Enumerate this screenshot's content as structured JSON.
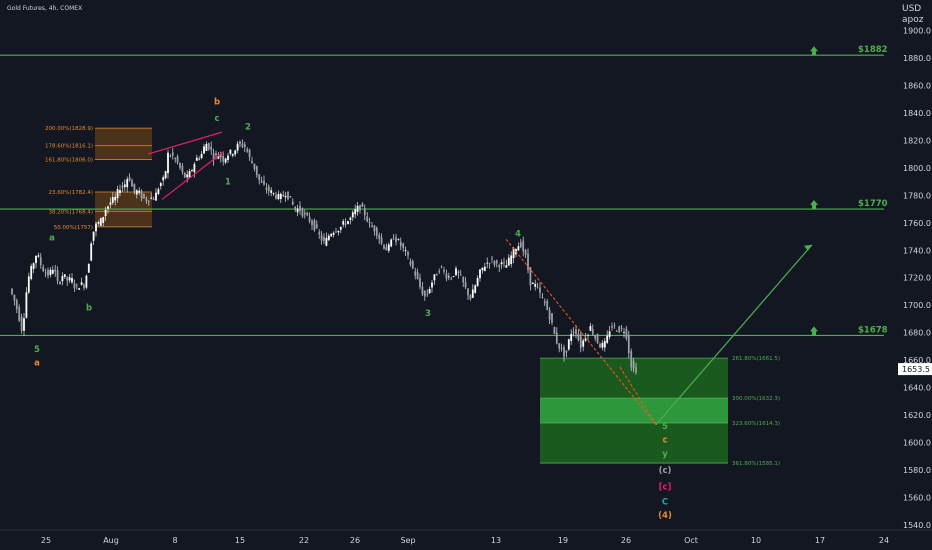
{
  "header": {
    "symbol_line": "Gold Futures, 4h, COMEX",
    "currency": "USD",
    "account": "apoz"
  },
  "colors": {
    "background": "#131722",
    "axis_text": "#d1d4dc",
    "candle_up": "#ffffff",
    "candle_down": "#ffffff",
    "level_line": "#4caf50",
    "wave_green": "#4caf50",
    "wave_orange": "#e68a2e",
    "wave_pink": "#e91e63",
    "wave_grey": "#9e9e9e",
    "wave_teal": "#26a69a",
    "fib_orange_fill": "#5a3a1a",
    "fib_green_dark": "#1b5e20",
    "fib_green_light": "#2e9e3e",
    "current_price_bg": "#ffffff"
  },
  "chart_data": {
    "type": "candlestick",
    "ylim": [
      1540,
      1920
    ],
    "y_ticks": [
      1540,
      1560,
      1580,
      1600,
      1620,
      1640,
      1660,
      1680,
      1700,
      1720,
      1740,
      1760,
      1780,
      1800,
      1820,
      1840,
      1860,
      1880,
      1900
    ],
    "y_tick_labels": [
      "1540.0",
      "1560.0",
      "1580.0",
      "1600.0",
      "1620.0",
      "1640.0",
      "1660.0",
      "1680.0",
      "1700.0",
      "1720.0",
      "1740.0",
      "1760.0",
      "1780.0",
      "1800.0",
      "1820.0",
      "1840.0",
      "1860.0",
      "1880.0",
      "1900.0"
    ],
    "x_ticks": [
      "25",
      "Aug",
      "8",
      "15",
      "22",
      "26",
      "Sep",
      "13",
      "19",
      "26",
      "Oct",
      "10",
      "17",
      "24"
    ],
    "current_price": "1653.5",
    "price_path": [
      {
        "t": 0,
        "p": 1712
      },
      {
        "t": 4,
        "p": 1705
      },
      {
        "t": 8,
        "p": 1696
      },
      {
        "t": 12,
        "p": 1683
      },
      {
        "t": 14,
        "p": 1690
      },
      {
        "t": 18,
        "p": 1718
      },
      {
        "t": 22,
        "p": 1727
      },
      {
        "t": 27,
        "p": 1738
      },
      {
        "t": 31,
        "p": 1730
      },
      {
        "t": 35,
        "p": 1724
      },
      {
        "t": 39,
        "p": 1722
      },
      {
        "t": 44,
        "p": 1728
      },
      {
        "t": 48,
        "p": 1716
      },
      {
        "t": 53,
        "p": 1722
      },
      {
        "t": 58,
        "p": 1718
      },
      {
        "t": 62,
        "p": 1719
      },
      {
        "t": 66,
        "p": 1712
      },
      {
        "t": 70,
        "p": 1715
      },
      {
        "t": 75,
        "p": 1715
      },
      {
        "t": 80,
        "p": 1735
      },
      {
        "t": 82,
        "p": 1750
      },
      {
        "t": 86,
        "p": 1758
      },
      {
        "t": 92,
        "p": 1762
      },
      {
        "t": 96,
        "p": 1770
      },
      {
        "t": 101,
        "p": 1775
      },
      {
        "t": 106,
        "p": 1778
      },
      {
        "t": 110,
        "p": 1786
      },
      {
        "t": 114,
        "p": 1786
      },
      {
        "t": 119,
        "p": 1795
      },
      {
        "t": 124,
        "p": 1782
      },
      {
        "t": 128,
        "p": 1783
      },
      {
        "t": 133,
        "p": 1778
      },
      {
        "t": 137,
        "p": 1777
      },
      {
        "t": 140,
        "p": 1778
      },
      {
        "t": 145,
        "p": 1778
      },
      {
        "t": 150,
        "p": 1788
      },
      {
        "t": 155,
        "p": 1792
      },
      {
        "t": 158,
        "p": 1810
      },
      {
        "t": 164,
        "p": 1808
      },
      {
        "t": 169,
        "p": 1802
      },
      {
        "t": 174,
        "p": 1794
      },
      {
        "t": 178,
        "p": 1793
      },
      {
        "t": 183,
        "p": 1800
      },
      {
        "t": 186,
        "p": 1806
      },
      {
        "t": 192,
        "p": 1810
      },
      {
        "t": 196,
        "p": 1818
      },
      {
        "t": 200,
        "p": 1815
      },
      {
        "t": 204,
        "p": 1808
      },
      {
        "t": 209,
        "p": 1810
      },
      {
        "t": 214,
        "p": 1806
      },
      {
        "t": 218,
        "p": 1810
      },
      {
        "t": 224,
        "p": 1812
      },
      {
        "t": 230,
        "p": 1818
      },
      {
        "t": 236,
        "p": 1815
      },
      {
        "t": 240,
        "p": 1807
      },
      {
        "t": 245,
        "p": 1800
      },
      {
        "t": 250,
        "p": 1790
      },
      {
        "t": 256,
        "p": 1785
      },
      {
        "t": 262,
        "p": 1782
      },
      {
        "t": 266,
        "p": 1780
      },
      {
        "t": 270,
        "p": 1778
      },
      {
        "t": 276,
        "p": 1782
      },
      {
        "t": 280,
        "p": 1778
      },
      {
        "t": 285,
        "p": 1770
      },
      {
        "t": 290,
        "p": 1770
      },
      {
        "t": 295,
        "p": 1765
      },
      {
        "t": 300,
        "p": 1762
      },
      {
        "t": 305,
        "p": 1757
      },
      {
        "t": 310,
        "p": 1750
      },
      {
        "t": 315,
        "p": 1745
      },
      {
        "t": 320,
        "p": 1752
      },
      {
        "t": 325,
        "p": 1755
      },
      {
        "t": 330,
        "p": 1756
      },
      {
        "t": 335,
        "p": 1760
      },
      {
        "t": 340,
        "p": 1762
      },
      {
        "t": 345,
        "p": 1768
      },
      {
        "t": 350,
        "p": 1772
      },
      {
        "t": 355,
        "p": 1767
      },
      {
        "t": 360,
        "p": 1758
      },
      {
        "t": 366,
        "p": 1755
      },
      {
        "t": 372,
        "p": 1745
      },
      {
        "t": 378,
        "p": 1740
      },
      {
        "t": 384,
        "p": 1750
      },
      {
        "t": 390,
        "p": 1745
      },
      {
        "t": 396,
        "p": 1738
      },
      {
        "t": 401,
        "p": 1730
      },
      {
        "t": 406,
        "p": 1722
      },
      {
        "t": 411,
        "p": 1712
      },
      {
        "t": 416,
        "p": 1705
      },
      {
        "t": 421,
        "p": 1715
      },
      {
        "t": 426,
        "p": 1722
      },
      {
        "t": 431,
        "p": 1728
      },
      {
        "t": 436,
        "p": 1722
      },
      {
        "t": 441,
        "p": 1720
      },
      {
        "t": 446,
        "p": 1725
      },
      {
        "t": 451,
        "p": 1720
      },
      {
        "t": 456,
        "p": 1712
      },
      {
        "t": 461,
        "p": 1705
      },
      {
        "t": 466,
        "p": 1715
      },
      {
        "t": 471,
        "p": 1725
      },
      {
        "t": 476,
        "p": 1730
      },
      {
        "t": 481,
        "p": 1733
      },
      {
        "t": 486,
        "p": 1730
      },
      {
        "t": 491,
        "p": 1730
      },
      {
        "t": 496,
        "p": 1728
      },
      {
        "t": 501,
        "p": 1735
      },
      {
        "t": 506,
        "p": 1742
      },
      {
        "t": 511,
        "p": 1745
      },
      {
        "t": 516,
        "p": 1735
      },
      {
        "t": 521,
        "p": 1716
      },
      {
        "t": 526,
        "p": 1714
      },
      {
        "t": 531,
        "p": 1707
      },
      {
        "t": 536,
        "p": 1700
      },
      {
        "t": 541,
        "p": 1690
      },
      {
        "t": 546,
        "p": 1675
      },
      {
        "t": 551,
        "p": 1668
      },
      {
        "t": 556,
        "p": 1663
      },
      {
        "t": 561,
        "p": 1680
      },
      {
        "t": 566,
        "p": 1682
      },
      {
        "t": 571,
        "p": 1670
      },
      {
        "t": 576,
        "p": 1678
      },
      {
        "t": 581,
        "p": 1684
      },
      {
        "t": 586,
        "p": 1676
      },
      {
        "t": 591,
        "p": 1670
      },
      {
        "t": 596,
        "p": 1672
      },
      {
        "t": 601,
        "p": 1685
      },
      {
        "t": 606,
        "p": 1683
      },
      {
        "t": 611,
        "p": 1682
      },
      {
        "t": 616,
        "p": 1682
      },
      {
        "t": 621,
        "p": 1658
      },
      {
        "t": 624,
        "p": 1653.5
      }
    ],
    "levels": [
      {
        "price": 1882,
        "label": "$1882"
      },
      {
        "price": 1770,
        "label": "$1770"
      },
      {
        "price": 1678,
        "label": "$1678"
      }
    ],
    "fib_upper": [
      {
        "text": "200.00%(1828.9)",
        "price": 1828.9
      },
      {
        "text": "178.60%(1816.1)",
        "price": 1816.1
      },
      {
        "text": "161.80%(1806.0)",
        "price": 1806.0
      },
      {
        "text": "23.60%(1782.4)",
        "price": 1782.4
      },
      {
        "text": "38.20%(1768.4)",
        "price": 1768.4
      },
      {
        "text": "50.00%(1757)",
        "price": 1757.0
      }
    ],
    "fib_lower": [
      {
        "text": "261.80%(1661.5)",
        "price": 1661.5
      },
      {
        "text": "300.00%(1632.3)",
        "price": 1632.3
      },
      {
        "text": "323.60%(1614.3)",
        "price": 1614.3
      },
      {
        "text": "361.80%(1585.1)",
        "price": 1585.1
      }
    ],
    "wave_labels": [
      {
        "text": "a",
        "color": "green",
        "t": 40,
        "price": 1747
      },
      {
        "text": "b",
        "color": "green",
        "t": 77,
        "price": 1696
      },
      {
        "text": "5",
        "color": "green",
        "t": 25,
        "price": 1666
      },
      {
        "text": "a",
        "color": "orange",
        "t": 25,
        "price": 1656
      },
      {
        "text": "b",
        "color": "orange",
        "t": 205,
        "price": 1846
      },
      {
        "text": "c",
        "color": "green",
        "t": 205,
        "price": 1834
      },
      {
        "text": "2",
        "color": "green",
        "t": 236,
        "price": 1828
      },
      {
        "text": "1",
        "color": "green",
        "t": 216,
        "price": 1788
      },
      {
        "text": "3",
        "color": "green",
        "t": 416,
        "price": 1692
      },
      {
        "text": "4",
        "color": "green",
        "t": 506,
        "price": 1750
      },
      {
        "text": "5",
        "color": "green",
        "t": 653,
        "price": 1610
      },
      {
        "text": "c",
        "color": "orange",
        "t": 653,
        "price": 1600
      },
      {
        "text": "y",
        "color": "green",
        "t": 653,
        "price": 1590
      },
      {
        "text": "(c)",
        "color": "grey",
        "t": 653,
        "price": 1578
      },
      {
        "text": "[c]",
        "color": "pink",
        "t": 653,
        "price": 1566
      },
      {
        "text": "C",
        "color": "teal",
        "t": 653,
        "price": 1555
      },
      {
        "text": "(4)",
        "color": "orange",
        "t": 653,
        "price": 1545
      }
    ]
  }
}
